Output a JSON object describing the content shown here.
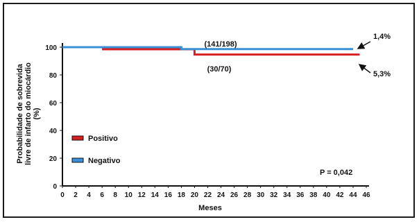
{
  "chart_data": {
    "type": "line",
    "xlabel": "Meses",
    "ylabel_line1": "Probabilidade de sobrevida",
    "ylabel_line2": "livre de infarto do miocárdio",
    "ylabel_line3": "(%)",
    "xlim": [
      0,
      46
    ],
    "ylim": [
      0,
      100
    ],
    "x_ticks": [
      0,
      2,
      4,
      6,
      8,
      10,
      12,
      14,
      16,
      18,
      20,
      22,
      24,
      26,
      28,
      30,
      32,
      34,
      36,
      38,
      40,
      42,
      44,
      46
    ],
    "y_ticks": [
      0,
      20,
      40,
      60,
      80,
      100
    ],
    "grid": false,
    "legend_position": "left",
    "series": [
      {
        "name": "Positivo",
        "color": "#d42020",
        "points": [
          [
            6,
            98.5
          ],
          [
            20,
            98.5
          ],
          [
            20,
            94.7
          ],
          [
            44,
            94.7
          ],
          [
            45,
            94.7
          ]
        ]
      },
      {
        "name": "Negativo",
        "color": "#3b8fd6",
        "points": [
          [
            0,
            100
          ],
          [
            18,
            100
          ],
          [
            18,
            98.6
          ],
          [
            44,
            98.6
          ]
        ]
      }
    ],
    "annotations": {
      "negativo_count": "(141/198)",
      "positivo_count": "(30/70)",
      "negativo_end": "1,4%",
      "positivo_end": "5,3%",
      "p_value": "P = 0,042"
    }
  }
}
